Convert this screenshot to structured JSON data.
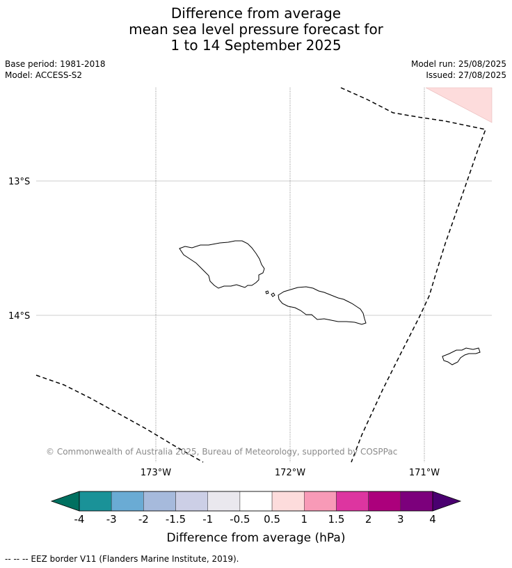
{
  "title": {
    "line1": "Difference from average",
    "line2": "mean sea level pressure forecast for",
    "line3": "1 to 14 September 2025"
  },
  "meta": {
    "base_period": "Base period: 1981-2018",
    "model": "Model: ACCESS-S2",
    "model_run": "Model run: 25/08/2025",
    "issued": "Issued: 27/08/2025"
  },
  "map": {
    "lat_labels": [
      "13°S",
      "14°S"
    ],
    "lon_labels": [
      "173°W",
      "172°W",
      "171°W"
    ],
    "copyright": "© Commonwealth of Australia 2025, Bureau of Meteorology, supported by COSPPac",
    "anomaly_region_color": "#fddcdc",
    "anomaly_region_class": "0.5 to 1 hPa"
  },
  "colorbar": {
    "title": "Difference from average (hPa)",
    "ticks": [
      "-4",
      "-3",
      "-2",
      "-1.5",
      "-1",
      "-0.5",
      "0.5",
      "1",
      "1.5",
      "2",
      "3",
      "4"
    ],
    "under_color": "#007060",
    "over_color": "#4a0070",
    "colors": [
      "#1a9298",
      "#6aabd4",
      "#a6badc",
      "#cccfe6",
      "#eae8ee",
      "#ffffff",
      "#fddcdc",
      "#f89ab7",
      "#dd35a0",
      "#ac007c",
      "#7c007c"
    ]
  },
  "footnote": "--  --  -- EEZ border V11 (Flanders Marine Institute, 2019)."
}
